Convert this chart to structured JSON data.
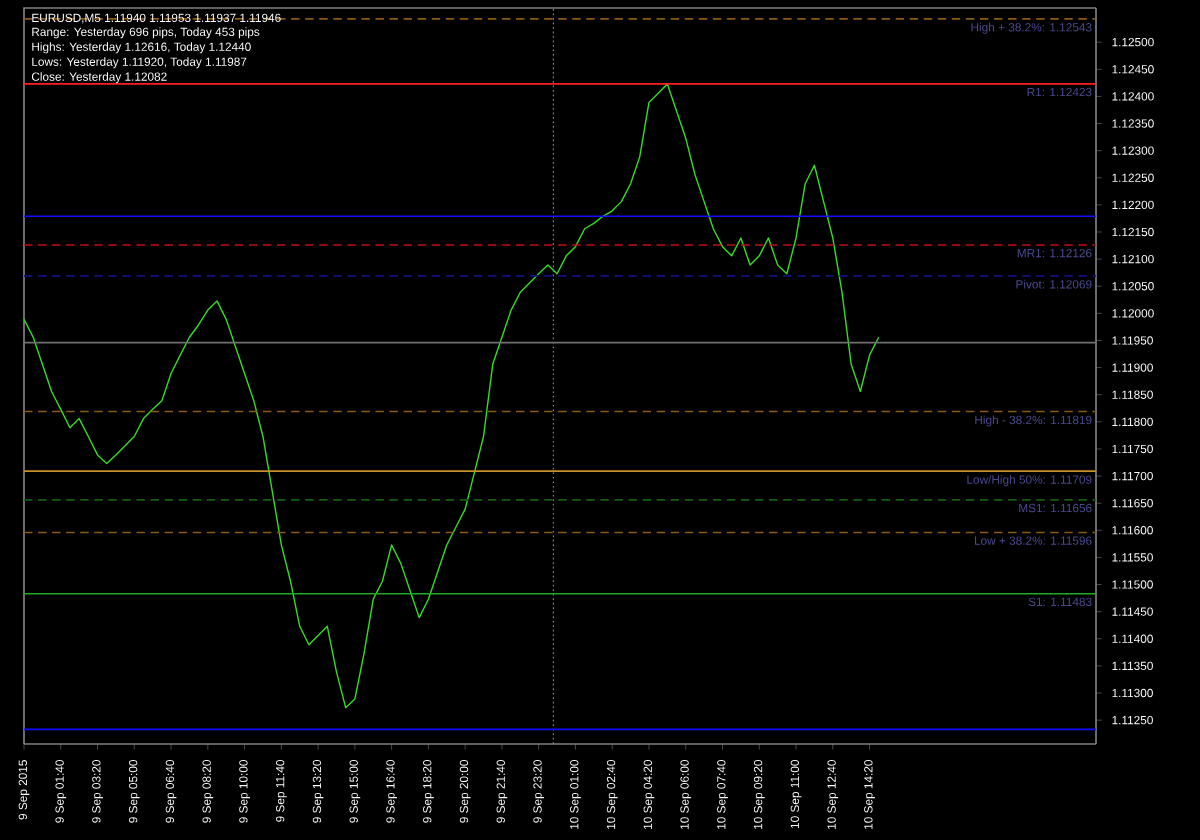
{
  "chart_data": {
    "type": "line",
    "title": "EURUSD,M5  1.11940 1.11953 1.11937 1.11946",
    "annotations": [
      "Range: Yesterday 696 pips, Today 453 pips",
      "Highs: Yesterday 1.12616, Today 1.12440",
      "Lows: Yesterday 1.11920, Today 1.11987",
      "Close: Yesterday 1.12082"
    ],
    "x": [
      "2015-09-09T00:00",
      "2015-09-09T00:25",
      "2015-09-09T00:50",
      "2015-09-09T01:15",
      "2015-09-09T01:40",
      "2015-09-09T02:05",
      "2015-09-09T02:30",
      "2015-09-09T02:55",
      "2015-09-09T03:20",
      "2015-09-09T03:45",
      "2015-09-09T04:10",
      "2015-09-09T04:35",
      "2015-09-09T05:00",
      "2015-09-09T05:25",
      "2015-09-09T05:50",
      "2015-09-09T06:15",
      "2015-09-09T06:40",
      "2015-09-09T07:05",
      "2015-09-09T07:30",
      "2015-09-09T07:55",
      "2015-09-09T08:20",
      "2015-09-09T08:45",
      "2015-09-09T09:10",
      "2015-09-09T09:35",
      "2015-09-09T10:00",
      "2015-09-09T10:25",
      "2015-09-09T10:50",
      "2015-09-09T11:15",
      "2015-09-09T11:40",
      "2015-09-09T12:05",
      "2015-09-09T12:30",
      "2015-09-09T12:55",
      "2015-09-09T13:20",
      "2015-09-09T13:45",
      "2015-09-09T14:10",
      "2015-09-09T14:35",
      "2015-09-09T15:00",
      "2015-09-09T15:25",
      "2015-09-09T15:50",
      "2015-09-09T16:15",
      "2015-09-09T16:40",
      "2015-09-09T17:05",
      "2015-09-09T17:30",
      "2015-09-09T17:55",
      "2015-09-09T18:20",
      "2015-09-09T18:45",
      "2015-09-09T19:10",
      "2015-09-09T19:35",
      "2015-09-09T20:00",
      "2015-09-09T20:25",
      "2015-09-09T20:50",
      "2015-09-09T21:15",
      "2015-09-09T21:40",
      "2015-09-09T22:05",
      "2015-09-09T22:30",
      "2015-09-09T22:55",
      "2015-09-09T23:20",
      "2015-09-09T23:45",
      "2015-09-10T00:10",
      "2015-09-10T00:35",
      "2015-09-10T01:00",
      "2015-09-10T01:25",
      "2015-09-10T01:50",
      "2015-09-10T02:15",
      "2015-09-10T02:40",
      "2015-09-10T03:05",
      "2015-09-10T03:30",
      "2015-09-10T03:55",
      "2015-09-10T04:20",
      "2015-09-10T04:45",
      "2015-09-10T05:10",
      "2015-09-10T05:35",
      "2015-09-10T06:00",
      "2015-09-10T06:25",
      "2015-09-10T06:50",
      "2015-09-10T07:15",
      "2015-09-10T07:40",
      "2015-09-10T08:05",
      "2015-09-10T08:30",
      "2015-09-10T08:55",
      "2015-09-10T09:20",
      "2015-09-10T09:45",
      "2015-09-10T10:10",
      "2015-09-10T10:35",
      "2015-09-10T11:00",
      "2015-09-10T11:25",
      "2015-09-10T11:50",
      "2015-09-10T12:15",
      "2015-09-10T12:40",
      "2015-09-10T13:05",
      "2015-09-10T13:30",
      "2015-09-10T13:55",
      "2015-09-10T14:20",
      "2015-09-10T14:45"
    ],
    "series": [
      {
        "color": "#33dd22",
        "values": [
          1.11989,
          1.11956,
          1.11906,
          1.11856,
          1.11823,
          1.11789,
          1.11806,
          1.11773,
          1.11739,
          1.11723,
          1.11739,
          1.11756,
          1.11773,
          1.11806,
          1.11823,
          1.11839,
          1.11889,
          1.11923,
          1.11956,
          1.11979,
          1.12006,
          1.12023,
          1.11989,
          1.11939,
          1.11889,
          1.11839,
          1.11773,
          1.11673,
          1.11573,
          1.11506,
          1.11423,
          1.11389,
          1.11406,
          1.11423,
          1.11339,
          1.11273,
          1.11289,
          1.11373,
          1.11473,
          1.11506,
          1.11573,
          1.11539,
          1.11489,
          1.11439,
          1.11473,
          1.11523,
          1.11573,
          1.11606,
          1.11639,
          1.11706,
          1.11773,
          1.11906,
          1.11956,
          1.12006,
          1.12039,
          1.12056,
          1.12073,
          1.12089,
          1.12073,
          1.12106,
          1.12123,
          1.12156,
          1.12166,
          1.12179,
          1.12189,
          1.12206,
          1.12239,
          1.12289,
          1.12389,
          1.12406,
          1.12423,
          1.12373,
          1.12323,
          1.12256,
          1.12206,
          1.12156,
          1.12123,
          1.12106,
          1.12139,
          1.12089,
          1.12106,
          1.12139,
          1.12089,
          1.12073,
          1.12139,
          1.12239,
          1.12273,
          1.12206,
          1.12139,
          1.12039,
          1.11906,
          1.11856,
          1.11923,
          1.11956
        ]
      }
    ],
    "xlim": [
      "2015-09-09T00:00",
      "2015-09-11T00:36"
    ],
    "ylim": [
      1.11206,
      1.12563
    ],
    "xticks": [
      {
        "value": "2015-09-09T00:00",
        "label": "9 Sep 2015"
      },
      {
        "value": "2015-09-09T01:40",
        "label": "9 Sep 01:40"
      },
      {
        "value": "2015-09-09T03:20",
        "label": "9 Sep 03:20"
      },
      {
        "value": "2015-09-09T05:00",
        "label": "9 Sep 05:00"
      },
      {
        "value": "2015-09-09T06:40",
        "label": "9 Sep 06:40"
      },
      {
        "value": "2015-09-09T08:20",
        "label": "9 Sep 08:20"
      },
      {
        "value": "2015-09-09T10:00",
        "label": "9 Sep 10:00"
      },
      {
        "value": "2015-09-09T11:40",
        "label": "9 Sep 11:40"
      },
      {
        "value": "2015-09-09T13:20",
        "label": "9 Sep 13:20"
      },
      {
        "value": "2015-09-09T15:00",
        "label": "9 Sep 15:00"
      },
      {
        "value": "2015-09-09T16:40",
        "label": "9 Sep 16:40"
      },
      {
        "value": "2015-09-09T18:20",
        "label": "9 Sep 18:20"
      },
      {
        "value": "2015-09-09T20:00",
        "label": "9 Sep 20:00"
      },
      {
        "value": "2015-09-09T21:40",
        "label": "9 Sep 21:40"
      },
      {
        "value": "2015-09-09T23:20",
        "label": "9 Sep 23:20"
      },
      {
        "value": "2015-09-10T01:00",
        "label": "10 Sep 01:00"
      },
      {
        "value": "2015-09-10T02:40",
        "label": "10 Sep 02:40"
      },
      {
        "value": "2015-09-10T04:20",
        "label": "10 Sep 04:20"
      },
      {
        "value": "2015-09-10T06:00",
        "label": "10 Sep 06:00"
      },
      {
        "value": "2015-09-10T07:40",
        "label": "10 Sep 07:40"
      },
      {
        "value": "2015-09-10T09:20",
        "label": "10 Sep 09:20"
      },
      {
        "value": "2015-09-10T11:00",
        "label": "10 Sep 11:00"
      },
      {
        "value": "2015-09-10T12:40",
        "label": "10 Sep 12:40"
      },
      {
        "value": "2015-09-10T14:20",
        "label": "10 Sep 14:20"
      }
    ],
    "yticks": [
      {
        "value": 1.1125,
        "label": "1.11250"
      },
      {
        "value": 1.113,
        "label": "1.11300"
      },
      {
        "value": 1.1135,
        "label": "1.11350"
      },
      {
        "value": 1.114,
        "label": "1.11400"
      },
      {
        "value": 1.1145,
        "label": "1.11450"
      },
      {
        "value": 1.115,
        "label": "1.11500"
      },
      {
        "value": 1.1155,
        "label": "1.11550"
      },
      {
        "value": 1.116,
        "label": "1.11600"
      },
      {
        "value": 1.1165,
        "label": "1.11650"
      },
      {
        "value": 1.117,
        "label": "1.11700"
      },
      {
        "value": 1.1175,
        "label": "1.11750"
      },
      {
        "value": 1.118,
        "label": "1.11800"
      },
      {
        "value": 1.1185,
        "label": "1.11850"
      },
      {
        "value": 1.119,
        "label": "1.11900"
      },
      {
        "value": 1.1195,
        "label": "1.11950"
      },
      {
        "value": 1.12,
        "label": "1.12000"
      },
      {
        "value": 1.1205,
        "label": "1.12050"
      },
      {
        "value": 1.121,
        "label": "1.12100"
      },
      {
        "value": 1.1215,
        "label": "1.12150"
      },
      {
        "value": 1.122,
        "label": "1.12200"
      },
      {
        "value": 1.1225,
        "label": "1.12250"
      },
      {
        "value": 1.123,
        "label": "1.12300"
      },
      {
        "value": 1.1235,
        "label": "1.12350"
      },
      {
        "value": 1.124,
        "label": "1.12400"
      },
      {
        "value": 1.1245,
        "label": "1.12450"
      },
      {
        "value": 1.125,
        "label": "1.12500"
      }
    ],
    "ref_lines": [
      {
        "axis": "x",
        "value": "2015-09-10T00:00",
        "color": "#888888",
        "line_style": "dotted"
      },
      {
        "axis": "y",
        "value": 1.12543,
        "label": "High + 38.2%: 1.12543",
        "color": "#8b5a14",
        "line_style": "dashed"
      },
      {
        "axis": "y",
        "value": 1.12423,
        "label": "R1: 1.12423",
        "color": "#ff2020",
        "line_style": "solid"
      },
      {
        "axis": "y",
        "value": 1.12179,
        "color": "#1010ff",
        "line_style": "solid"
      },
      {
        "axis": "y",
        "value": 1.12126,
        "label": "MR1: 1.12126",
        "color": "#c01010",
        "line_style": "dashed"
      },
      {
        "axis": "y",
        "value": 1.12069,
        "label": "Pivot: 1.12069",
        "color": "#101080",
        "line_style": "dashed"
      },
      {
        "axis": "y",
        "value": 1.11946,
        "color": "#707070",
        "line_style": "solid"
      },
      {
        "axis": "y",
        "value": 1.11819,
        "label": "High - 38.2%: 1.11819",
        "color": "#8b5a14",
        "line_style": "dashed"
      },
      {
        "axis": "y",
        "value": 1.11709,
        "label": "Low/High 50%: 1.11709",
        "color": "#c8902a",
        "line_style": "solid"
      },
      {
        "axis": "y",
        "value": 1.11656,
        "label": "MS1: 1.11656",
        "color": "#106010",
        "line_style": "dashed"
      },
      {
        "axis": "y",
        "value": 1.11596,
        "label": "Low + 38.2%: 1.11596",
        "color": "#8b5a14",
        "line_style": "dashed"
      },
      {
        "axis": "y",
        "value": 1.11483,
        "label": "S1: 1.11483",
        "color": "#22aa22",
        "line_style": "solid"
      },
      {
        "axis": "y",
        "value": 1.11233,
        "color": "#1010ff",
        "line_style": "solid"
      }
    ],
    "grid": false
  }
}
